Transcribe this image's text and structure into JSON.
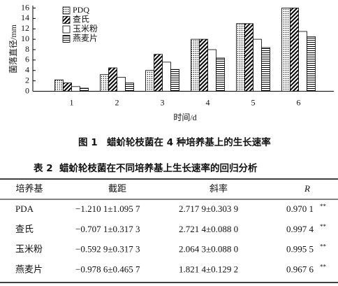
{
  "chart_data": {
    "type": "bar",
    "ylabel": "菌落直径/mm",
    "xlabel": "时间/d",
    "categories": [
      "1",
      "2",
      "3",
      "4",
      "5",
      "6"
    ],
    "series": [
      {
        "name": "PDQ",
        "pattern": "dots",
        "values": [
          2.2,
          3.2,
          4.0,
          10.0,
          13.0,
          16.0
        ]
      },
      {
        "name": "查氏",
        "pattern": "diagonal",
        "values": [
          1.6,
          4.5,
          7.1,
          10.0,
          13.0,
          16.0
        ]
      },
      {
        "name": "玉米粉",
        "pattern": "none",
        "values": [
          0.9,
          2.7,
          5.6,
          8.0,
          10.0,
          11.5
        ]
      },
      {
        "name": "燕麦片",
        "pattern": "horizontal",
        "values": [
          0.6,
          1.6,
          4.2,
          6.4,
          8.4,
          10.5
        ]
      }
    ],
    "ylim": [
      0,
      16
    ],
    "yticks": [
      0,
      2,
      4,
      6,
      8,
      10,
      12,
      14,
      16
    ]
  },
  "figure_caption": {
    "label": "图 1",
    "text": "蜡蚧轮枝菌在 4 种培养基上的生长速率"
  },
  "table": {
    "label": "表 2",
    "title": "蜡蚧轮枝菌在不同培养基上生长速率的回归分析",
    "header": [
      "培养基",
      "截距",
      "斜率",
      "R"
    ],
    "rows": [
      {
        "medium": "PDA",
        "intercept": "−1.210 1±1.095 7",
        "slope": "2.717 9±0.303 9",
        "r": "0.970 1",
        "sig": "**"
      },
      {
        "medium": "查氏",
        "intercept": "−0.707 1±0.317 3",
        "slope": "2.721 4±0.088 0",
        "r": "0.997 4",
        "sig": "**"
      },
      {
        "medium": "玉米粉",
        "intercept": "−0.592 9±0.317 3",
        "slope": "2.064 3±0.088 0",
        "r": "0.995 5",
        "sig": "**"
      },
      {
        "medium": "燕麦片",
        "intercept": "−0.978 6±0.465 7",
        "slope": "1.821 4±0.129 2",
        "r": "0.967 6",
        "sig": "**"
      }
    ]
  }
}
